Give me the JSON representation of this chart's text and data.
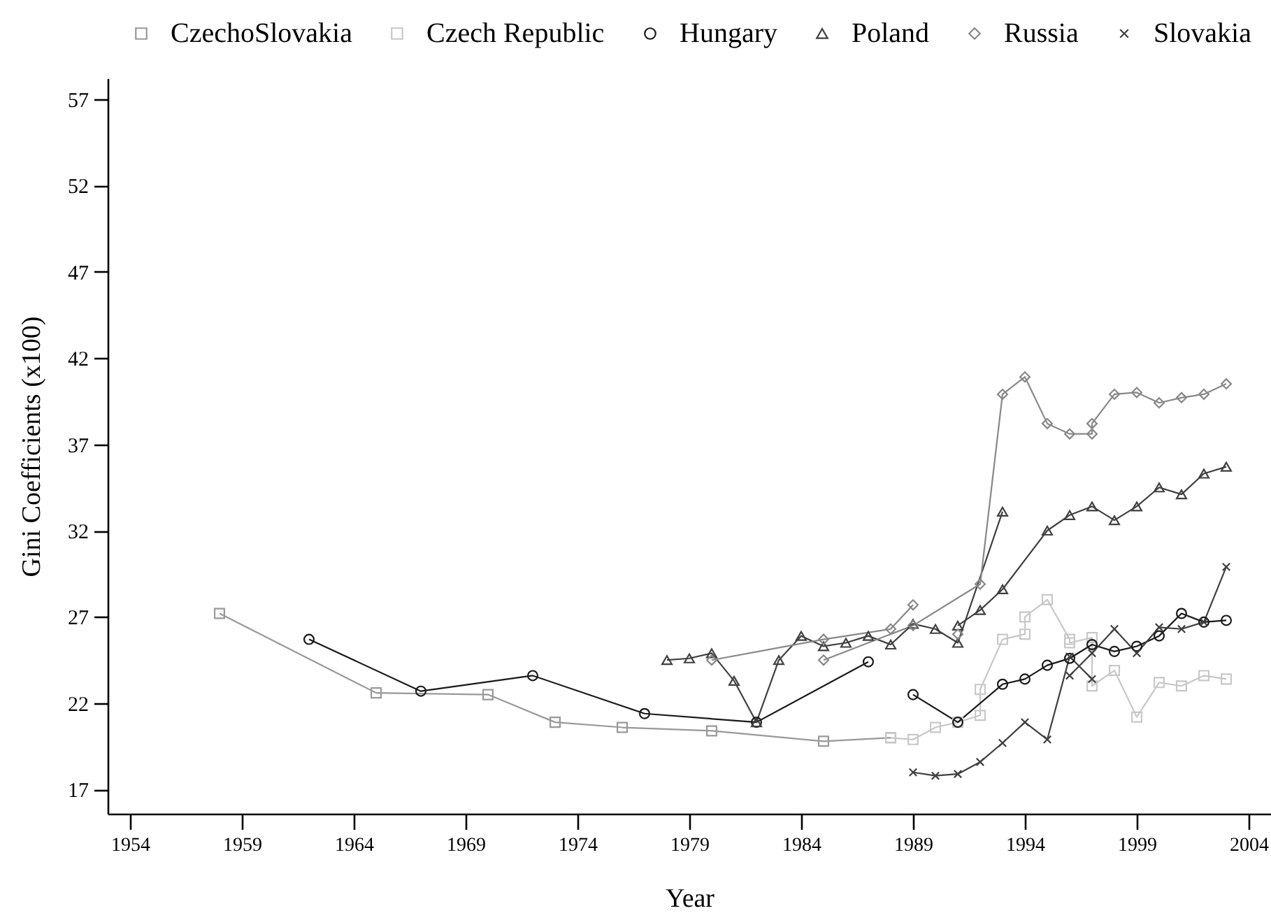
{
  "chart_data": {
    "type": "line",
    "xlabel": "Year",
    "ylabel": "Gini Coefficients (x100)",
    "xlim": [
      1953,
      2005
    ],
    "ylim": [
      15.6,
      58.2
    ],
    "xticks": [
      1954,
      1959,
      1964,
      1969,
      1974,
      1979,
      1984,
      1989,
      1994,
      1999,
      2004
    ],
    "yticks": [
      17,
      22,
      27,
      32,
      37,
      42,
      47,
      52,
      57
    ],
    "grid": false,
    "legend": "top",
    "series": [
      {
        "name": "CzechoSlovakia",
        "color": "#999999",
        "marker": "square",
        "x": [
          1958,
          1965,
          1970,
          1973,
          1976,
          1980,
          1985,
          1988
        ],
        "values": [
          27.2,
          22.6,
          22.5,
          20.9,
          20.6,
          20.4,
          19.8,
          20.0
        ]
      },
      {
        "name": "Czech Republic",
        "color": "#c8c8c8",
        "marker": "square",
        "x": [
          1988,
          1989,
          1990,
          1991,
          1992,
          1992,
          1993,
          1994,
          1994,
          1995,
          1996,
          1996,
          1997,
          1997,
          1998,
          1999,
          2000,
          2001,
          2002,
          2003
        ],
        "values": [
          20.0,
          19.9,
          20.6,
          20.9,
          21.3,
          22.8,
          25.7,
          26.0,
          27.0,
          28.0,
          25.7,
          25.5,
          25.8,
          23.0,
          23.9,
          21.2,
          23.2,
          23.0,
          23.6,
          23.4
        ]
      },
      {
        "name": "Hungary",
        "color": "#1a1a1a",
        "marker": "circle",
        "x": [
          1962,
          1967,
          1972,
          1977,
          1982,
          1987,
          null,
          1989,
          1991,
          1993,
          1994,
          1995,
          1996,
          1997,
          1998,
          1999,
          2000,
          2001,
          2002,
          2003
        ],
        "values": [
          25.7,
          22.7,
          23.6,
          21.4,
          20.9,
          24.4,
          null,
          22.5,
          20.9,
          23.1,
          23.4,
          24.2,
          24.6,
          25.4,
          25.0,
          25.3,
          25.9,
          27.2,
          26.7,
          26.8
        ]
      },
      {
        "name": "Poland",
        "color": "#404040",
        "marker": "triangle",
        "x": [
          1978,
          1979,
          1980,
          1981,
          1982,
          1983,
          1984,
          1985,
          1986,
          1987,
          1988,
          1989,
          1990,
          1991,
          1993,
          null,
          1991,
          1992,
          1993,
          1995,
          1996,
          1997,
          1998,
          1999,
          2000,
          2001,
          2002,
          2003
        ],
        "values": [
          24.5,
          24.6,
          24.9,
          23.3,
          20.9,
          24.5,
          25.9,
          25.3,
          25.5,
          25.9,
          25.4,
          26.6,
          26.3,
          25.5,
          33.1,
          null,
          26.5,
          27.4,
          28.6,
          32.0,
          32.9,
          33.4,
          32.6,
          33.4,
          34.5,
          34.1,
          35.3,
          35.7
        ]
      },
      {
        "name": "Russia",
        "color": "#888888",
        "marker": "diamond",
        "x": [
          1980,
          1985,
          1988,
          1989,
          null,
          1991,
          null,
          1985,
          1989,
          1992,
          1993,
          1994,
          1995,
          1996,
          1997,
          1997,
          1998,
          1999,
          2000,
          2001,
          2002,
          2003
        ],
        "values": [
          24.5,
          25.7,
          26.3,
          27.7,
          null,
          26.0,
          null,
          24.5,
          26.5,
          28.9,
          39.9,
          40.9,
          38.2,
          37.6,
          37.6,
          38.2,
          39.9,
          40.0,
          39.4,
          39.7,
          39.9,
          40.5
        ]
      },
      {
        "name": "Slovakia",
        "color": "#404040",
        "marker": "cross",
        "x": [
          1989,
          1990,
          1991,
          1992,
          1993,
          1994,
          1995,
          1996,
          1997,
          null,
          1996,
          1997,
          1998,
          1999,
          2000,
          2001,
          2002,
          2003
        ],
        "values": [
          18.0,
          17.8,
          17.9,
          18.6,
          19.7,
          20.9,
          19.9,
          24.7,
          23.4,
          null,
          23.6,
          24.9,
          26.3,
          24.9,
          26.4,
          26.3,
          26.7,
          29.9
        ]
      }
    ]
  }
}
